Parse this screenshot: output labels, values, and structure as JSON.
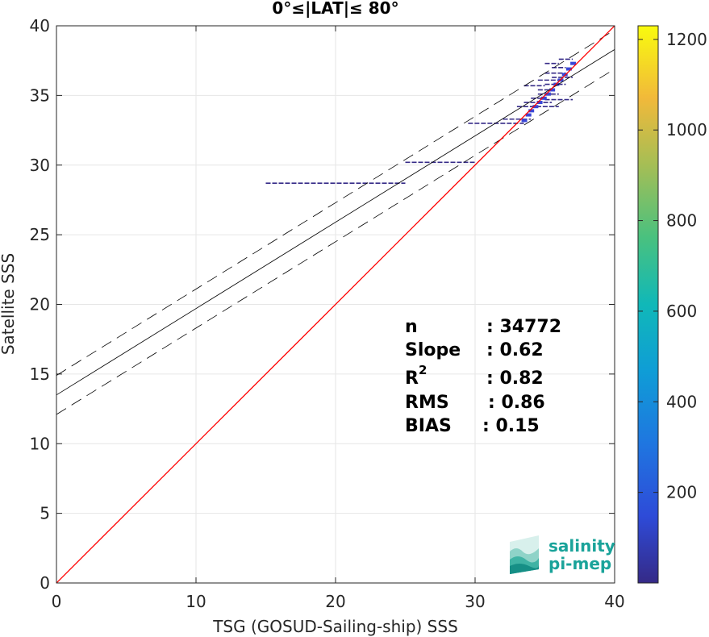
{
  "chart_data": {
    "type": "scatter",
    "title": "0°≤|LAT|≤ 80°",
    "xlabel": "TSG (GOSUD-Sailing-ship) SSS",
    "ylabel": "Satellite SSS",
    "xlim": [
      0,
      40
    ],
    "ylim": [
      0,
      40
    ],
    "x_ticks": [
      "0",
      "10",
      "20",
      "30",
      "40"
    ],
    "y_ticks": [
      "0",
      "5",
      "10",
      "15",
      "20",
      "25",
      "30",
      "35",
      "40"
    ],
    "grid": true,
    "colorbar": {
      "range": [
        0,
        1230
      ],
      "ticks": [
        "200",
        "400",
        "600",
        "800",
        "1000",
        "1200"
      ],
      "colormap": "parula"
    },
    "one_to_one_line": {
      "x": [
        0,
        40
      ],
      "y": [
        0,
        40
      ],
      "color": "#ff0000"
    },
    "regression_line": {
      "slope": 0.62,
      "intercept": 13.5,
      "color": "#000000"
    },
    "confidence_lines": [
      {
        "slope": 0.62,
        "intercept": 14.9
      },
      {
        "slope": 0.62,
        "intercept": 12.1
      }
    ],
    "point_segments": [
      {
        "x1": 15.0,
        "x2": 25.0,
        "y": 28.7
      },
      {
        "x1": 25.0,
        "x2": 30.0,
        "y": 30.2
      },
      {
        "x1": 29.5,
        "x2": 33.5,
        "y": 33.0
      },
      {
        "x1": 32.0,
        "x2": 34.0,
        "y": 33.3
      },
      {
        "x1": 33.0,
        "x2": 36.0,
        "y": 34.2
      },
      {
        "x1": 33.5,
        "x2": 35.5,
        "y": 34.5
      },
      {
        "x1": 34.0,
        "x2": 35.0,
        "y": 34.8
      },
      {
        "x1": 35.0,
        "x2": 37.0,
        "y": 34.7
      },
      {
        "x1": 34.5,
        "x2": 36.0,
        "y": 35.1
      },
      {
        "x1": 34.5,
        "x2": 35.5,
        "y": 35.4
      },
      {
        "x1": 33.5,
        "x2": 35.0,
        "y": 35.7
      },
      {
        "x1": 35.0,
        "x2": 36.5,
        "y": 35.8
      },
      {
        "x1": 34.5,
        "x2": 36.0,
        "y": 36.1
      },
      {
        "x1": 35.5,
        "x2": 37.0,
        "y": 36.3
      },
      {
        "x1": 35.0,
        "x2": 36.5,
        "y": 36.6
      },
      {
        "x1": 35.5,
        "x2": 36.5,
        "y": 37.0
      },
      {
        "x1": 35.0,
        "x2": 36.0,
        "y": 37.3
      },
      {
        "x1": 36.0,
        "x2": 37.0,
        "y": 37.6
      }
    ],
    "dense_points": [
      {
        "x": 33.5,
        "y": 33.2
      },
      {
        "x": 33.8,
        "y": 33.6
      },
      {
        "x": 34.0,
        "y": 33.9
      },
      {
        "x": 34.3,
        "y": 34.2
      },
      {
        "x": 34.6,
        "y": 34.5
      },
      {
        "x": 34.9,
        "y": 34.8
      },
      {
        "x": 35.2,
        "y": 35.1
      },
      {
        "x": 35.5,
        "y": 35.4
      },
      {
        "x": 35.8,
        "y": 35.8
      },
      {
        "x": 36.1,
        "y": 36.1
      },
      {
        "x": 36.4,
        "y": 36.5
      },
      {
        "x": 36.7,
        "y": 36.9
      },
      {
        "x": 37.0,
        "y": 37.3
      }
    ]
  },
  "stats": {
    "n_label": "n",
    "n_value": ": 34772",
    "slope_label": "Slope",
    "slope_value": ": 0.62",
    "r2_label": "R",
    "r2_sup": "2",
    "r2_value": ": 0.82",
    "rms_label": "RMS",
    "rms_value": ": 0.86",
    "bias_label": "BIAS",
    "bias_value": ": 0.15"
  },
  "logo": {
    "line1": "salinity",
    "line2": "pi-mep",
    "color": "#1aa39a"
  }
}
